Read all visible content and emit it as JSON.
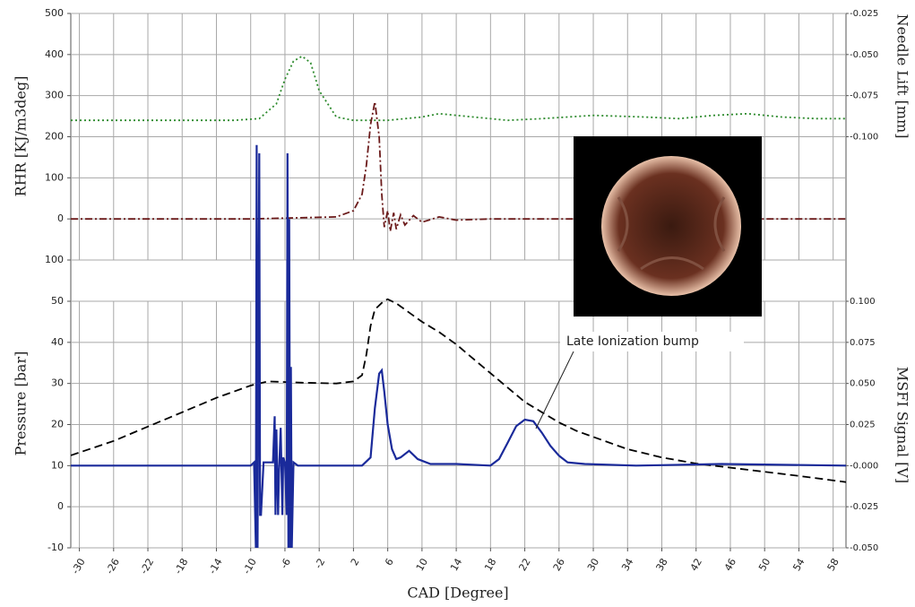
{
  "chart_data": [
    {
      "type": "line",
      "ylabel": "RHR [KJ/m3deg]",
      "y2label": "Needle Lift [mm]",
      "xlim": [
        -31,
        59.5
      ],
      "ylim": [
        -100,
        500
      ],
      "yticks": [
        500,
        400,
        300,
        200,
        100,
        0,
        {
          "value": -100,
          "label": "100"
        }
      ],
      "y2lim": [
        -0.175,
        -0.025
      ],
      "y2ticks": [
        -0.025,
        {
          "value": -0.05,
          "label": "-0.050"
        },
        -0.075,
        {
          "value": -0.1,
          "label": "-0.100"
        }
      ],
      "grid": true,
      "series": [
        {
          "color": "#2e8b2e",
          "linestyle": "dotted",
          "axis": "y2",
          "x": [
            -31,
            -12,
            -9,
            -7,
            -6,
            -5,
            -4,
            -3,
            -2,
            0,
            2,
            6,
            10,
            12,
            16,
            20,
            24,
            30,
            36,
            40,
            44,
            48,
            52,
            56,
            59.5
          ],
          "values": [
            -0.09,
            -0.09,
            -0.089,
            -0.08,
            -0.065,
            -0.054,
            -0.051,
            -0.055,
            -0.072,
            -0.088,
            -0.09,
            -0.09,
            -0.088,
            -0.086,
            -0.088,
            -0.09,
            -0.089,
            -0.087,
            -0.088,
            -0.089,
            -0.087,
            -0.086,
            -0.088,
            -0.089,
            -0.089
          ]
        },
        {
          "color": "#6b1a1a",
          "linestyle": "dashdot",
          "axis": "y",
          "x": [
            -31,
            -10,
            0,
            2,
            3,
            3.5,
            4,
            4.5,
            5,
            5.3,
            5.6,
            6,
            6.3,
            6.7,
            7,
            7.5,
            8,
            9,
            10,
            12,
            14,
            18,
            59.5
          ],
          "values": [
            0,
            0,
            5,
            20,
            60,
            130,
            230,
            285,
            200,
            60,
            -20,
            20,
            -30,
            15,
            -25,
            10,
            -15,
            8,
            -8,
            5,
            -3,
            0,
            0
          ]
        }
      ]
    },
    {
      "type": "line",
      "ylabel": "Pressure [bar]",
      "y2label": "MSFI Signal [V]",
      "xlabel": "CAD [Degree]",
      "xlim": [
        -31,
        59.5
      ],
      "xticks": [
        -30,
        -26,
        -22,
        -18,
        -14,
        -10,
        -6,
        -2,
        2,
        6,
        10,
        14,
        18,
        22,
        26,
        30,
        34,
        38,
        42,
        46,
        50,
        54,
        58
      ],
      "ylim": [
        -10,
        50
      ],
      "yticks": [
        50,
        40,
        30,
        20,
        10,
        0,
        -10
      ],
      "y2lim": [
        -0.05,
        0.1
      ],
      "y2ticks": [
        {
          "value": 0.1,
          "label": "0.100"
        },
        0.075,
        {
          "value": 0.05,
          "label": "0.050"
        },
        0.025,
        {
          "value": 0,
          "label": "-0.000"
        },
        -0.025,
        {
          "value": -0.05,
          "label": "-0.050"
        }
      ],
      "grid": true,
      "annotation": "Late Ionization bump",
      "series": [
        {
          "color": "#000000",
          "linestyle": "dashed",
          "axis": "y",
          "x": [
            -31,
            -26,
            -22,
            -18,
            -14,
            -10,
            -8,
            -4,
            0,
            2,
            3,
            3.5,
            4,
            4.5,
            5,
            5.5,
            6,
            7,
            8,
            10,
            12,
            14,
            16,
            18,
            20,
            22,
            24,
            26,
            28,
            30,
            34,
            38,
            42,
            46,
            50,
            54,
            59.5
          ],
          "values": [
            12.5,
            16,
            19.5,
            23,
            26.5,
            29.5,
            30.5,
            30.2,
            30,
            30.5,
            32,
            37,
            44,
            48,
            49,
            50,
            50.5,
            49.5,
            48,
            45,
            42.5,
            39.5,
            36,
            32.5,
            29,
            25.5,
            23,
            20.5,
            18.5,
            17,
            14,
            12,
            10.5,
            9.5,
            8.5,
            7.5,
            6
          ]
        },
        {
          "color": "#1a2a9a",
          "linestyle": "solid",
          "axis": "y2",
          "x": [
            -31,
            -20,
            -12,
            -10,
            -9.6,
            -9.4,
            -9.3,
            -9.2,
            -9.0,
            -8.9,
            -8.8,
            -8.5,
            -7.4,
            -7.2,
            -7.1,
            -7.0,
            -6.8,
            -6.7,
            -6.5,
            -6.3,
            -6.2,
            -6.0,
            -5.8,
            -5.7,
            -5.6,
            -5.5,
            -5.4,
            -5.3,
            -5.2,
            -5.0,
            -4.5,
            0,
            3,
            4,
            4.5,
            5,
            5.3,
            5.6,
            6,
            6.5,
            7,
            7.5,
            8.5,
            9.5,
            11,
            14,
            18,
            19,
            20,
            21,
            22,
            23,
            24,
            25,
            26,
            27,
            29,
            35,
            45,
            59.5
          ],
          "values": [
            0,
            0,
            0,
            0,
            0.002,
            -0.05,
            0.195,
            -0.05,
            0.19,
            -0.03,
            -0.03,
            0.002,
            0.002,
            0.03,
            -0.03,
            0.022,
            -0.03,
            -0.005,
            0.023,
            -0.03,
            0.005,
            0.002,
            -0.03,
            0.19,
            -0.05,
            0.15,
            -0.05,
            0.06,
            -0.05,
            0.002,
            0,
            0,
            0,
            0.005,
            0.035,
            0.056,
            0.058,
            0.045,
            0.025,
            0.01,
            0.004,
            0.005,
            0.009,
            0.004,
            0.001,
            0.001,
            0,
            0.004,
            0.014,
            0.024,
            0.028,
            0.027,
            0.02,
            0.012,
            0.006,
            0.002,
            0.001,
            0,
            0.001,
            0
          ]
        }
      ]
    }
  ]
}
